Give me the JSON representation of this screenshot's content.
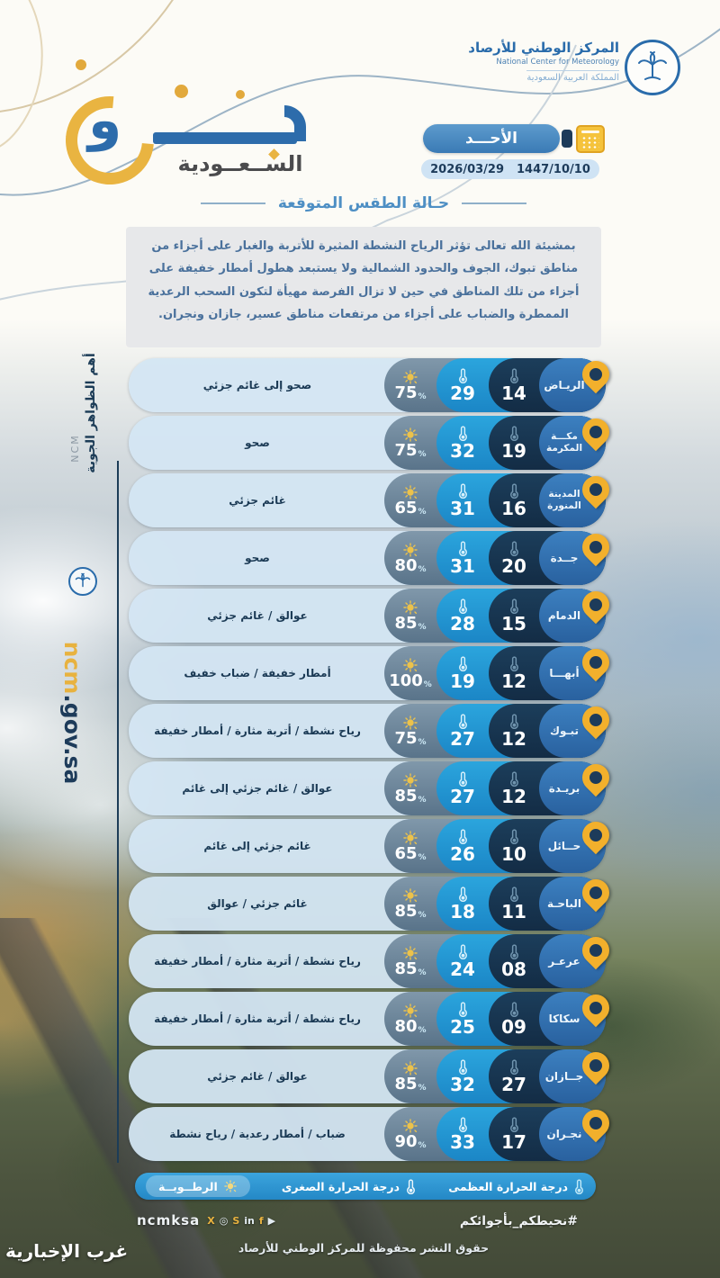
{
  "brand": {
    "word_waw": "و",
    "sub": "الســعــودية"
  },
  "org": {
    "name_ar": "المركز الوطني للأرصاد",
    "name_en": "National Center for Meteorology",
    "country": "المملكة العربية السعودية"
  },
  "date": {
    "day": "الأحـــد",
    "hijri": "1447/10/10",
    "gregorian": "2026/03/29"
  },
  "section": {
    "title": "حـالة الطقس المتوقعة",
    "forecast": "بمشيئة الله تعالى تؤثر الرياح النشطة المثيرة للأتربة والغبار على أجزاء من مناطق تبوك، الجوف والحدود الشمالية ولا يستبعد هطول أمطار خفيفة على أجزاء من تلك المناطق في حين لا تزال الفرصة مهيأة لتكون السحب الرعدية الممطرة والضباب على أجزاء من مرتفعات مناطق عسير، جازان ونجران."
  },
  "sidebar": {
    "phenomena": "أهم الظواهر الجوية",
    "ncm": "NCM",
    "site_a": "ncm",
    "site_b": ".gov.sa"
  },
  "units": {
    "percent": "%"
  },
  "cities": [
    {
      "name": "الريـاض",
      "name2": "",
      "min": "14",
      "max": "29",
      "humidity": "75",
      "condition": "صحو إلى غائم جزئي"
    },
    {
      "name": "مكـــة",
      "name2": "المكرمة",
      "min": "19",
      "max": "32",
      "humidity": "75",
      "condition": "صحو"
    },
    {
      "name": "المدينة",
      "name2": "المنورة",
      "min": "16",
      "max": "31",
      "humidity": "65",
      "condition": "غائم جزئي"
    },
    {
      "name": "جــدة",
      "name2": "",
      "min": "20",
      "max": "31",
      "humidity": "80",
      "condition": "صحو"
    },
    {
      "name": "الدمام",
      "name2": "",
      "min": "15",
      "max": "28",
      "humidity": "85",
      "condition": "عوالق / غائم جزئي"
    },
    {
      "name": "أبهـــا",
      "name2": "",
      "min": "12",
      "max": "19",
      "humidity": "100",
      "condition": "أمطار خفيفة / ضباب خفيف"
    },
    {
      "name": "تبـوك",
      "name2": "",
      "min": "12",
      "max": "27",
      "humidity": "75",
      "condition": "رياح نشطة / أتربة مثارة / أمطار خفيفة"
    },
    {
      "name": "بريـدة",
      "name2": "",
      "min": "12",
      "max": "27",
      "humidity": "85",
      "condition": "عوالق / غائم جزئي إلى غائم"
    },
    {
      "name": "حــائل",
      "name2": "",
      "min": "10",
      "max": "26",
      "humidity": "65",
      "condition": "غائم جزئي إلى غائم"
    },
    {
      "name": "الباحـة",
      "name2": "",
      "min": "11",
      "max": "18",
      "humidity": "85",
      "condition": "غائم جزئي / عوالق"
    },
    {
      "name": "عرعـر",
      "name2": "",
      "min": "08",
      "max": "24",
      "humidity": "85",
      "condition": "رياح نشطة / أتربة مثارة / أمطار خفيفة"
    },
    {
      "name": "سكاكا",
      "name2": "",
      "min": "09",
      "max": "25",
      "humidity": "80",
      "condition": "رياح نشطة / أتربة مثارة / أمطار خفيفة"
    },
    {
      "name": "جــازان",
      "name2": "",
      "min": "27",
      "max": "32",
      "humidity": "85",
      "condition": "عوالق / غائم جزئي"
    },
    {
      "name": "نجـران",
      "name2": "",
      "min": "17",
      "max": "33",
      "humidity": "90",
      "condition": "ضباب / أمطار رعدية / رياح نشطة"
    }
  ],
  "legend": {
    "max": "درجة الحرارة العظمى",
    "min": "درجة الحرارة الصغرى",
    "humidity": "الرطــوبــة"
  },
  "footer": {
    "hashtag": "#نحيطكم_بأجوائكم",
    "account": "ncmksa",
    "copyright": "حقوق النشر محفوظة للمركز الوطني للأرصاد",
    "watermark": "غرب الإخبارية",
    "social": [
      {
        "name": "x-icon",
        "glyph": "X"
      },
      {
        "name": "instagram-icon",
        "glyph": "◎"
      },
      {
        "name": "snapchat-icon",
        "glyph": "S"
      },
      {
        "name": "linkedin-icon",
        "glyph": "in"
      },
      {
        "name": "facebook-icon",
        "glyph": "f"
      },
      {
        "name": "youtube-icon",
        "glyph": "▶"
      }
    ]
  },
  "colors": {
    "accent_blue": "#2a6cab",
    "accent_yellow": "#e9b441",
    "row_city": "#2e6fb0",
    "row_min": "#16344f",
    "row_max": "#2095d2",
    "row_humidity": "#5f7f9b",
    "row_light": "#d3e5f3"
  }
}
